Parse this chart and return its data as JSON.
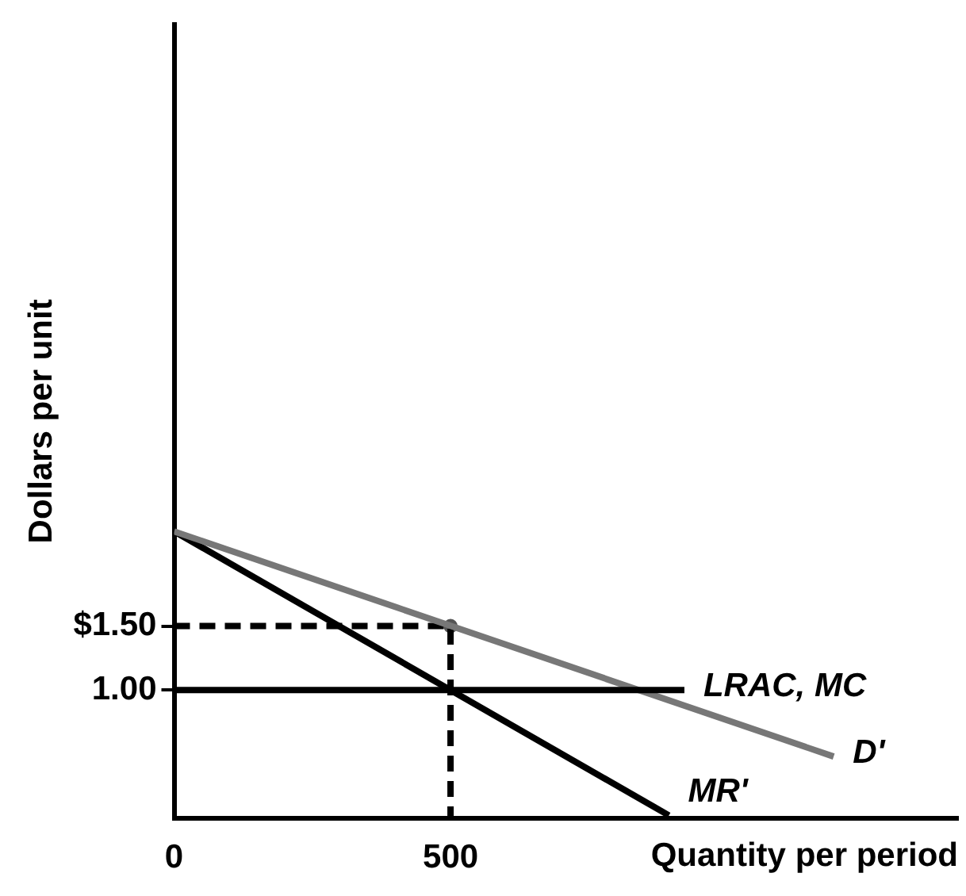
{
  "chart_data": {
    "type": "line",
    "xlabel": "Quantity per period",
    "ylabel": "Dollars per unit",
    "xlim": [
      0,
      1418
    ],
    "ylim": [
      0,
      6.2
    ],
    "xticks": [
      0,
      500
    ],
    "yticks": [
      {
        "value": 1,
        "label": "1.00"
      },
      {
        "value": 1.5,
        "label": "$1.50"
      }
    ],
    "series": [
      {
        "name": "LRAC, MC",
        "color": "#000000",
        "x": [
          0,
          923
        ],
        "values": [
          1,
          1
        ]
      },
      {
        "name": "D'",
        "color": "#777777",
        "x": [
          0,
          1193
        ],
        "values": [
          2.24,
          0.48
        ]
      },
      {
        "name": "MR'",
        "color": "#000000",
        "x": [
          0,
          895
        ],
        "values": [
          2.24,
          0.02
        ]
      },
      {
        "color": "#000000",
        "x": [
          0,
          500,
          500
        ],
        "values": [
          1.5,
          1.5,
          0
        ],
        "line_style": "dashed"
      },
      {
        "type": "scatter",
        "color": "#555555",
        "x": [
          500
        ],
        "values": [
          1.5
        ],
        "marker": "circle"
      }
    ]
  }
}
